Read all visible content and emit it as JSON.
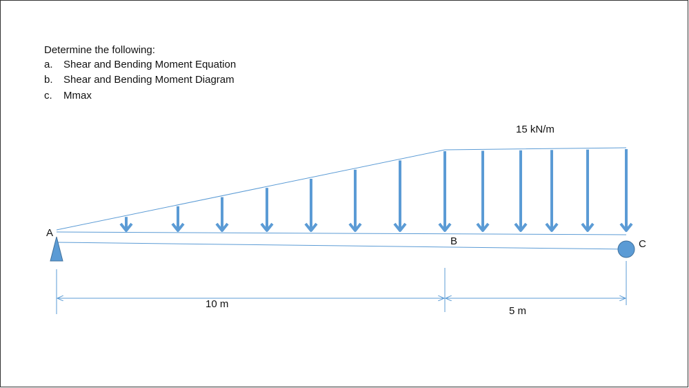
{
  "problem": {
    "prompt": "Determine the following:",
    "items": [
      {
        "marker": "a.",
        "text": "Shear and Bending Moment Equation"
      },
      {
        "marker": "b.",
        "text": "Shear and Bending Moment Diagram"
      },
      {
        "marker": "c.",
        "text": "Mmax"
      }
    ]
  },
  "diagram": {
    "load_label": "15 kN/m",
    "points": {
      "A": "A",
      "B": "B",
      "C": "C"
    },
    "dimensions": [
      "10 m",
      "5 m"
    ]
  }
}
